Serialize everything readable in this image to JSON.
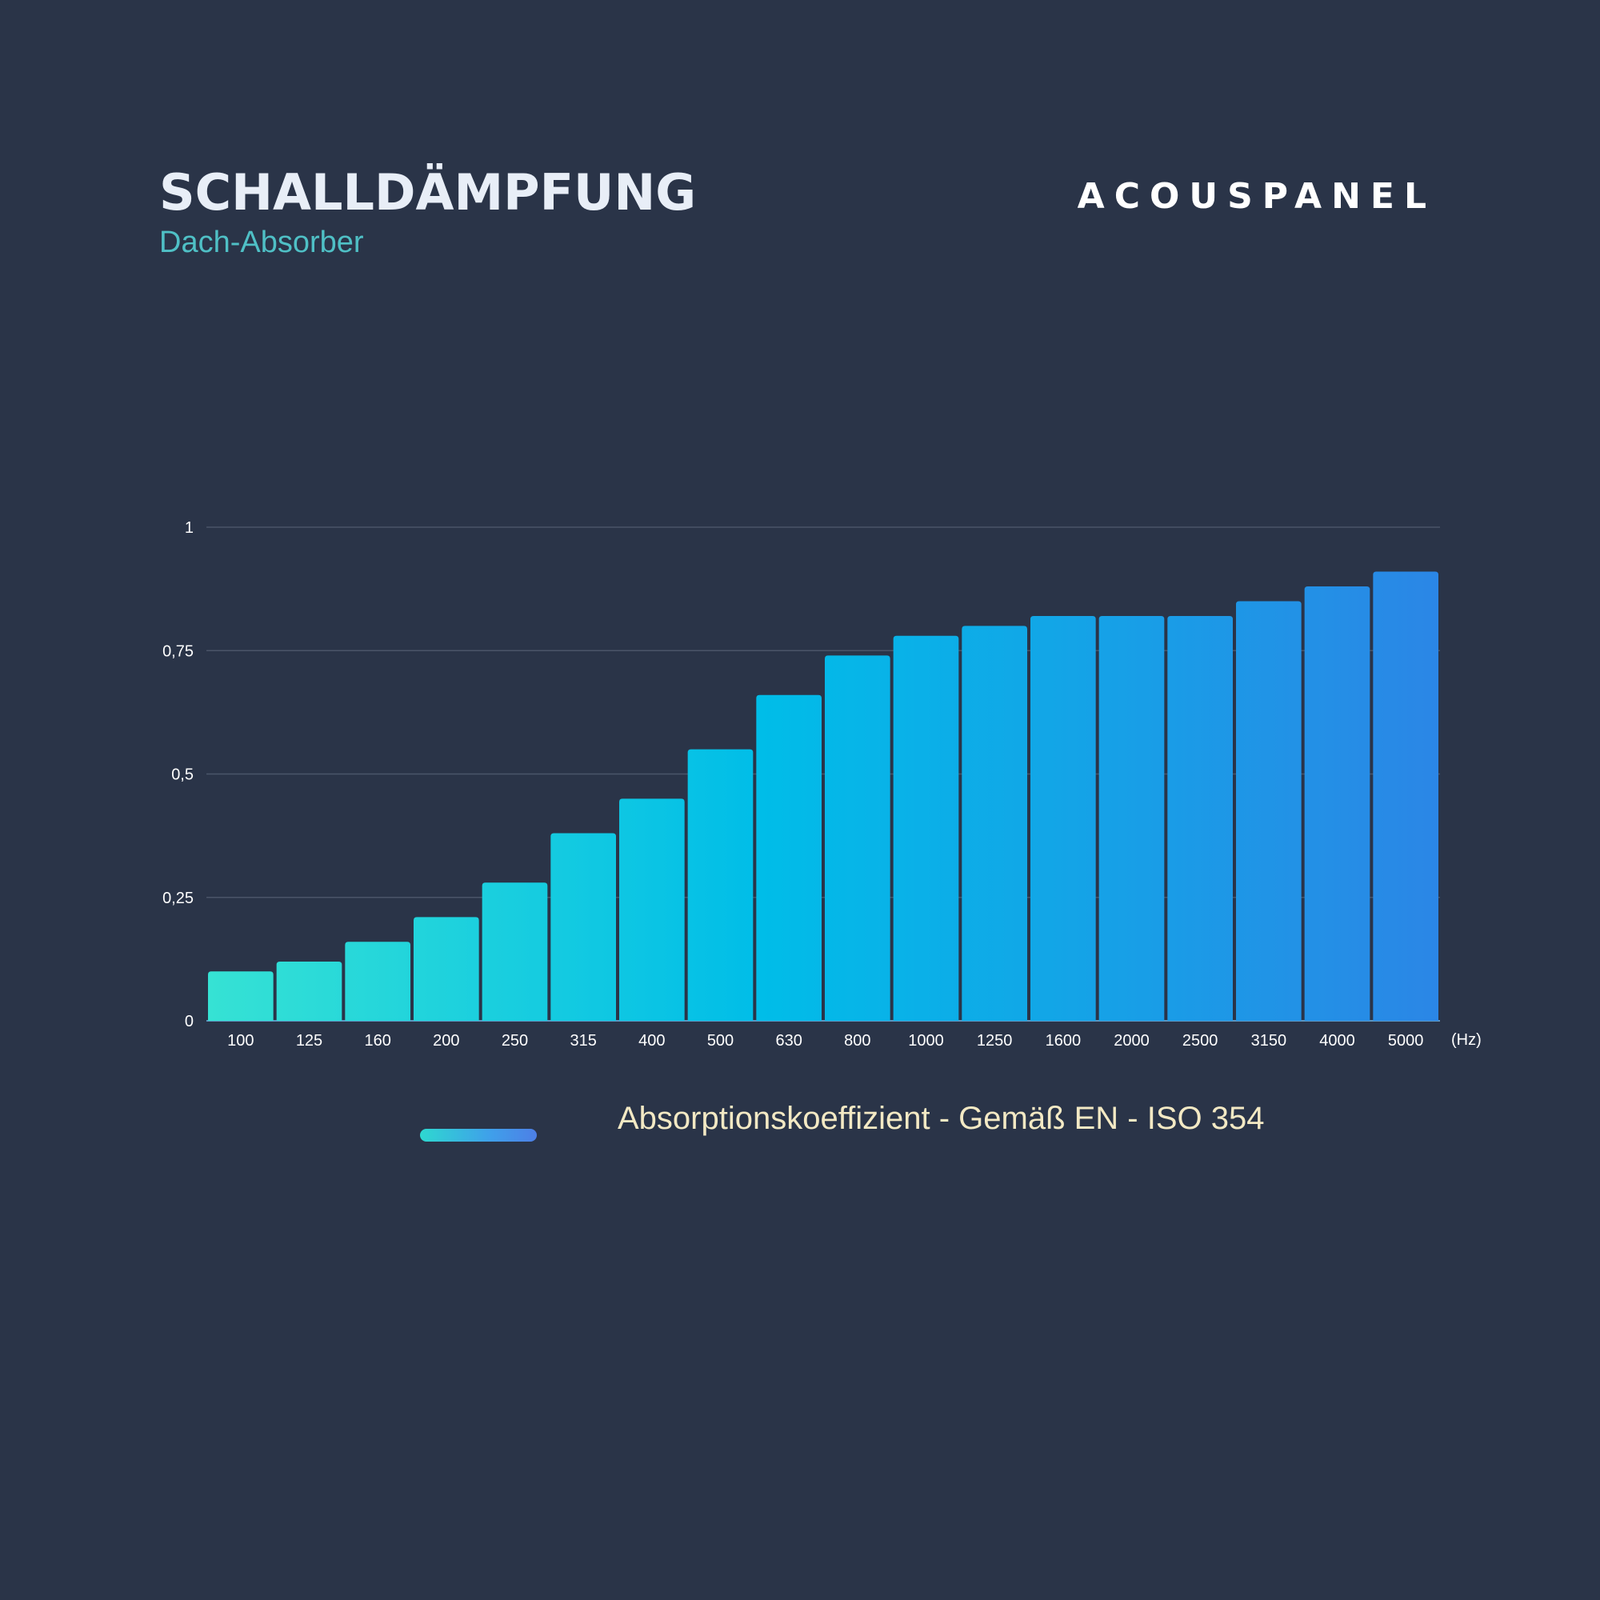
{
  "header": {
    "title": "SCHALLDÄMPFUNG",
    "subtitle": "Dach-Absorber",
    "brand": "ACOUSPANEL"
  },
  "colors": {
    "background": "#2a3448",
    "bar_start": "#36e2d4",
    "bar_mid": "#00bde8",
    "bar_end": "#2b86e6",
    "grid": "#4a5569",
    "axis_text": "#ffffff",
    "legend_text": "#f3e9c4",
    "subtitle": "#4fc0c6"
  },
  "chart_data": {
    "type": "bar",
    "title": "",
    "xlabel": "",
    "ylabel": "",
    "x_unit": "(Hz)",
    "categories": [
      "100",
      "125",
      "160",
      "200",
      "250",
      "315",
      "400",
      "500",
      "630",
      "800",
      "1000",
      "1250",
      "1600",
      "2000",
      "2500",
      "3150",
      "4000",
      "5000"
    ],
    "series": [
      {
        "name": "Absorptionskoeffizient - Gemäß EN - ISO 354",
        "values": [
          0.1,
          0.12,
          0.16,
          0.21,
          0.28,
          0.38,
          0.45,
          0.55,
          0.66,
          0.74,
          0.78,
          0.8,
          0.82,
          0.82,
          0.82,
          0.85,
          0.88,
          0.91
        ]
      }
    ],
    "ylim": [
      0,
      1
    ],
    "yticks": [
      0,
      0.25,
      0.5,
      0.75,
      1
    ],
    "ytick_labels": [
      "0",
      "0,25",
      "0,5",
      "0,75",
      "1"
    ],
    "grid": true,
    "legend_position": "bottom"
  }
}
